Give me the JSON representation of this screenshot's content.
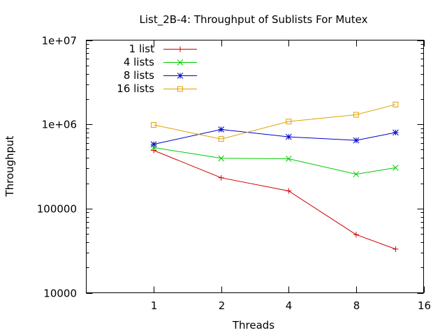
{
  "chart_data": {
    "type": "line",
    "title": "List_2B-4: Throughput of Sublists For Mutex",
    "xlabel": "Threads",
    "ylabel": "Throughput",
    "xscale": "log2",
    "yscale": "log10",
    "xlim": [
      0.5,
      16
    ],
    "ylim": [
      10000,
      10000000
    ],
    "xticks": [
      1,
      2,
      4,
      8,
      16
    ],
    "xtick_labels": [
      "1",
      "2",
      "4",
      "8",
      "16"
    ],
    "yticks": [
      10000,
      100000,
      1000000,
      10000000
    ],
    "ytick_labels": [
      "10000",
      "100000",
      "1e+06",
      "1e+07"
    ],
    "grid": false,
    "legend_position": "top-left",
    "x": [
      1,
      2,
      4,
      8,
      12
    ],
    "series": [
      {
        "name": "1 list",
        "color": "#cc0000",
        "marker": "plus",
        "values": [
          490000,
          232000,
          162000,
          49000,
          33000
        ]
      },
      {
        "name": "4 lists",
        "color": "#00cc00",
        "marker": "cross",
        "values": [
          530000,
          395000,
          390000,
          256000,
          305000
        ]
      },
      {
        "name": "8 lists",
        "color": "#0000cc",
        "marker": "star",
        "values": [
          580000,
          870000,
          710000,
          645000,
          800000
        ]
      },
      {
        "name": "16 lists",
        "color": "#e0a000",
        "marker": "square",
        "values": [
          985000,
          670000,
          1080000,
          1300000,
          1720000
        ]
      }
    ]
  }
}
